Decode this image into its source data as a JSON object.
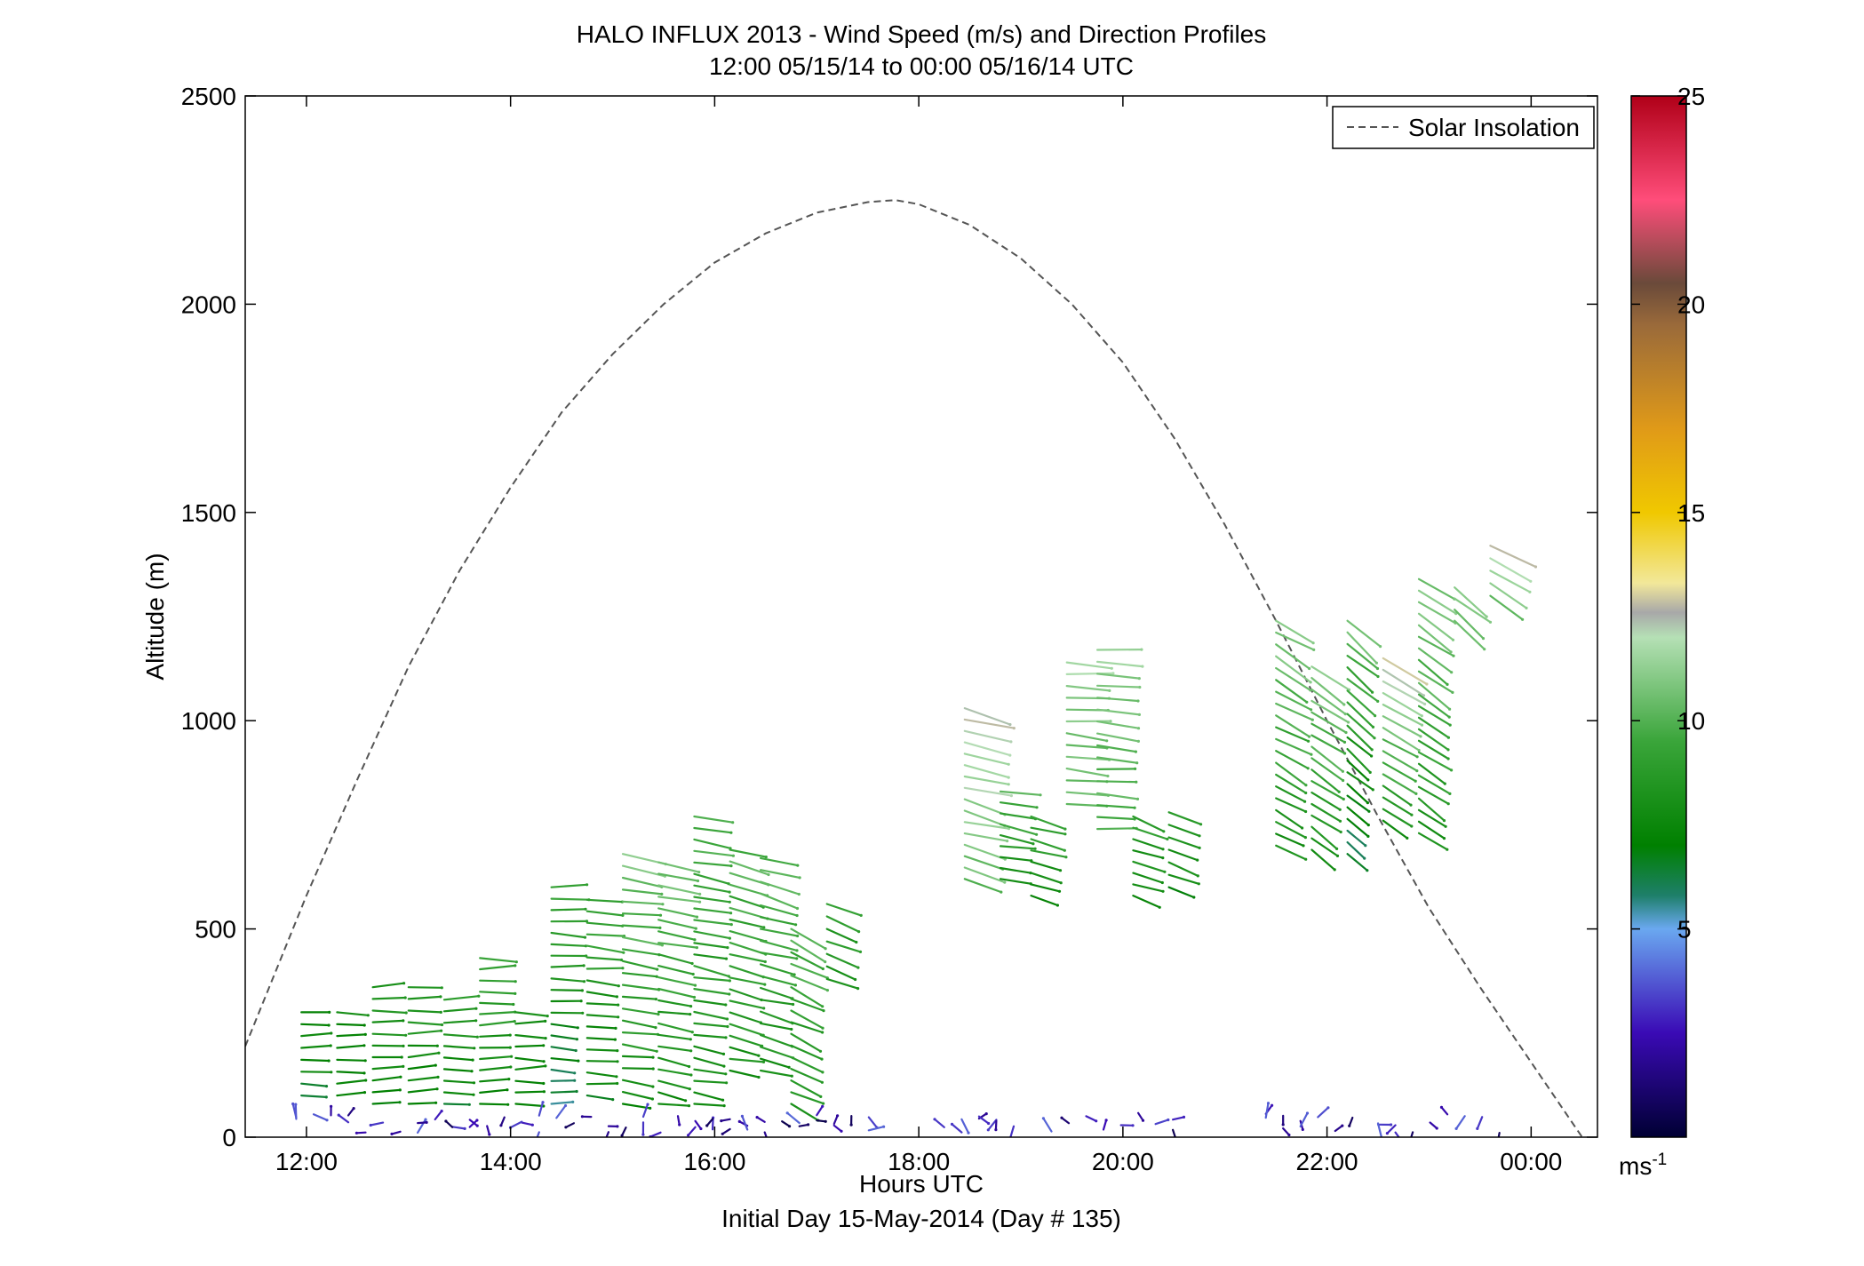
{
  "chart_data": {
    "type": "scatter",
    "title": [
      "HALO INFLUX 2013 - Wind Speed (m/s) and Direction Profiles",
      "12:00 05/15/14 to 00:00 05/16/14  UTC"
    ],
    "xlabel": "Hours UTC",
    "xlabel2": "Initial Day 15-May-2014 (Day # 135)",
    "ylabel": "Altitude (m)",
    "xlim": [
      11.4,
      24.65
    ],
    "ylim": [
      0,
      2500
    ],
    "xticks": [
      12,
      14,
      16,
      18,
      20,
      22,
      24
    ],
    "xtick_labels": [
      "12:00",
      "14:00",
      "16:00",
      "18:00",
      "20:00",
      "22:00",
      "00:00"
    ],
    "yticks": [
      0,
      500,
      1000,
      1500,
      2000,
      2500
    ],
    "ytick_labels": [
      "0",
      "500",
      "1000",
      "1500",
      "2000",
      "2500"
    ],
    "legend": {
      "entries": [
        "Solar Insolation"
      ],
      "placement": "top-right"
    },
    "colorbar": {
      "range": [
        0,
        25
      ],
      "ticks": [
        5,
        10,
        15,
        20,
        25
      ],
      "tick_labels": [
        "5",
        "10",
        "15",
        "20",
        "25"
      ],
      "unit_label": "ms",
      "unit_exponent": "-1",
      "stops": [
        {
          "v": 0,
          "color": "#000033"
        },
        {
          "v": 2.5,
          "color": "#3a0ab5"
        },
        {
          "v": 5,
          "color": "#6aa8f0"
        },
        {
          "v": 5.8,
          "color": "#1e7f6a"
        },
        {
          "v": 7,
          "color": "#008000"
        },
        {
          "v": 9.5,
          "color": "#3aa53a"
        },
        {
          "v": 12,
          "color": "#b5e0b5"
        },
        {
          "v": 12.6,
          "color": "#a8a8a8"
        },
        {
          "v": 13.3,
          "color": "#f2e89a"
        },
        {
          "v": 15,
          "color": "#f0c800"
        },
        {
          "v": 17,
          "color": "#e09a18"
        },
        {
          "v": 19.5,
          "color": "#9a6a3a"
        },
        {
          "v": 20.5,
          "color": "#6a4a3a"
        },
        {
          "v": 22.5,
          "color": "#ff4d7a"
        },
        {
          "v": 25,
          "color": "#b00018"
        }
      ]
    },
    "solar_insolation": {
      "x": [
        11.4,
        12.0,
        12.5,
        13.0,
        13.5,
        14.0,
        14.5,
        15.0,
        15.5,
        16.0,
        16.5,
        17.0,
        17.5,
        17.77,
        18.0,
        18.5,
        19.0,
        19.5,
        20.0,
        20.5,
        21.0,
        21.5,
        22.0,
        22.5,
        23.0,
        23.5,
        24.0,
        24.5
      ],
      "y": [
        218,
        580,
        860,
        1130,
        1360,
        1560,
        1740,
        1880,
        2000,
        2100,
        2170,
        2220,
        2245,
        2250,
        2240,
        2190,
        2110,
        2000,
        1860,
        1680,
        1470,
        1240,
        1000,
        770,
        550,
        360,
        180,
        0
      ]
    },
    "wind_profiles": [
      {
        "t": 11.95,
        "alt_lo": 100,
        "alt_hi": 300,
        "spd_lo": 7,
        "spd_hi": 7.5,
        "dir": 90
      },
      {
        "t": 12.3,
        "alt_lo": 100,
        "alt_hi": 300,
        "spd_lo": 7,
        "spd_hi": 7.5,
        "dir": 90
      },
      {
        "t": 12.65,
        "alt_lo": 80,
        "alt_hi": 360,
        "spd_lo": 7,
        "spd_hi": 8.5,
        "dir": 88
      },
      {
        "t": 13.0,
        "alt_lo": 80,
        "alt_hi": 360,
        "spd_lo": 7,
        "spd_hi": 8.5,
        "dir": 88
      },
      {
        "t": 13.35,
        "alt_lo": 80,
        "alt_hi": 330,
        "spd_lo": 7,
        "spd_hi": 8.5,
        "dir": 88
      },
      {
        "t": 13.7,
        "alt_lo": 80,
        "alt_hi": 430,
        "spd_lo": 7,
        "spd_hi": 9.5,
        "dir": 90
      },
      {
        "t": 14.05,
        "alt_lo": 80,
        "alt_hi": 300,
        "spd_lo": 7,
        "spd_hi": 8,
        "dir": 90
      },
      {
        "t": 14.4,
        "alt_lo": 80,
        "alt_hi": 600,
        "spd_lo": 6,
        "spd_hi": 9.5,
        "dir": 92
      },
      {
        "t": 14.75,
        "alt_lo": 100,
        "alt_hi": 570,
        "spd_lo": 7,
        "spd_hi": 9.5,
        "dir": 95
      },
      {
        "t": 15.1,
        "alt_lo": 80,
        "alt_hi": 680,
        "spd_lo": 7.5,
        "spd_hi": 11,
        "dir": 98
      },
      {
        "t": 15.45,
        "alt_lo": 80,
        "alt_hi": 660,
        "spd_lo": 7.5,
        "spd_hi": 10.5,
        "dir": 100
      },
      {
        "t": 15.8,
        "alt_lo": 80,
        "alt_hi": 770,
        "spd_lo": 7.5,
        "spd_hi": 10,
        "dir": 100
      },
      {
        "t": 16.15,
        "alt_lo": 160,
        "alt_hi": 690,
        "spd_lo": 8,
        "spd_hi": 10,
        "dir": 102
      },
      {
        "t": 16.45,
        "alt_lo": 160,
        "alt_hi": 670,
        "spd_lo": 8,
        "spd_hi": 10,
        "dir": 105
      },
      {
        "t": 16.75,
        "alt_lo": 80,
        "alt_hi": 500,
        "spd_lo": 8,
        "spd_hi": 10,
        "dir": 115
      },
      {
        "t": 17.1,
        "alt_lo": 380,
        "alt_hi": 560,
        "spd_lo": 8,
        "spd_hi": 9,
        "dir": 110
      },
      {
        "t": 18.45,
        "alt_lo": 620,
        "alt_hi": 1030,
        "spd_lo": 10.5,
        "spd_hi": 12.5,
        "dir": 105
      },
      {
        "t": 18.8,
        "alt_lo": 620,
        "alt_hi": 830,
        "spd_lo": 8,
        "spd_hi": 10,
        "dir": 100
      },
      {
        "t": 19.1,
        "alt_lo": 580,
        "alt_hi": 770,
        "spd_lo": 7.5,
        "spd_hi": 9.5,
        "dir": 105
      },
      {
        "t": 19.45,
        "alt_lo": 800,
        "alt_hi": 1140,
        "spd_lo": 10,
        "spd_hi": 11.5,
        "dir": 95
      },
      {
        "t": 19.75,
        "alt_lo": 740,
        "alt_hi": 1170,
        "spd_lo": 9.5,
        "spd_hi": 11.5,
        "dir": 95
      },
      {
        "t": 20.1,
        "alt_lo": 580,
        "alt_hi": 770,
        "spd_lo": 7.5,
        "spd_hi": 9,
        "dir": 110
      },
      {
        "t": 20.45,
        "alt_lo": 600,
        "alt_hi": 780,
        "spd_lo": 7.5,
        "spd_hi": 9,
        "dir": 110
      },
      {
        "t": 21.5,
        "alt_lo": 700,
        "alt_hi": 1240,
        "spd_lo": 8,
        "spd_hi": 11,
        "dir": 120
      },
      {
        "t": 21.85,
        "alt_lo": 690,
        "alt_hi": 1130,
        "spd_lo": 8,
        "spd_hi": 11,
        "dir": 125
      },
      {
        "t": 22.2,
        "alt_lo": 680,
        "alt_hi": 1240,
        "spd_lo": 6,
        "spd_hi": 10.5,
        "dir": 130
      },
      {
        "t": 22.55,
        "alt_lo": 760,
        "alt_hi": 1150,
        "spd_lo": 8,
        "spd_hi": 12.5,
        "dir": 120
      },
      {
        "t": 22.9,
        "alt_lo": 730,
        "alt_hi": 1340,
        "spd_lo": 8,
        "spd_hi": 11,
        "dir": 125
      },
      {
        "t": 23.25,
        "alt_lo": 1240,
        "alt_hi": 1320,
        "spd_lo": 10,
        "spd_hi": 11,
        "dir": 130
      },
      {
        "t": 23.6,
        "alt_lo": 1300,
        "alt_hi": 1420,
        "spd_lo": 10.5,
        "spd_hi": 12.6,
        "dir": 120
      }
    ],
    "near_surface_barbs": {
      "alt": [
        10,
        60
      ],
      "speed_range": [
        0.5,
        4
      ],
      "t_segments": [
        [
          11.9,
          17.6
        ],
        [
          18.25,
          19.0
        ],
        [
          19.3,
          20.6
        ],
        [
          21.4,
          22.4
        ],
        [
          22.5,
          23.7
        ]
      ]
    }
  }
}
